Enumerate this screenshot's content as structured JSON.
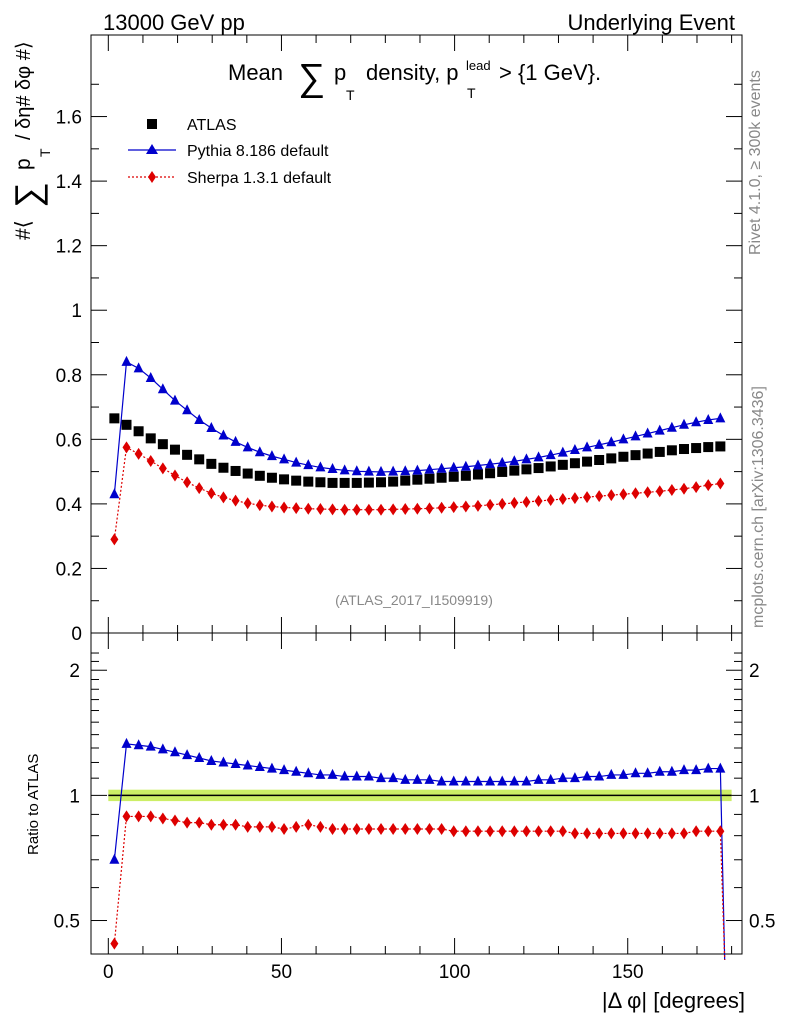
{
  "header": {
    "left": "13000 GeV pp",
    "right": "Underlying Event"
  },
  "side_labels": {
    "rivet": "Rivet 4.1.0, ≥ 300k events",
    "mcplots": "mcplots.cern.ch [arXiv:1306.3436]"
  },
  "chart_data": [
    {
      "type": "scatter",
      "panel": "main",
      "title": {
        "prefix": "Mean",
        "sum": "∑",
        "p": "p",
        "sub_T": "T",
        "middle": "density, p",
        "sup_lead": "lead",
        "suffix": "> {1 GeV}."
      },
      "ylabel": {
        "prefix": "#⟨",
        "sum": "∑",
        "p": "p",
        "sub_T": "T",
        "suffix": "/ δη# δφ #⟩"
      },
      "watermark": "(ATLAS_2017_I1509919)",
      "xlim": [
        -5,
        183
      ],
      "ylim": [
        0,
        1.8
      ],
      "y_ticks": [
        "0",
        "0.2",
        "0.4",
        "0.6",
        "0.8",
        "1",
        "1.2",
        "1.4",
        "1.6"
      ],
      "legend_position": "top-left",
      "x": [
        1.75,
        5.25,
        8.75,
        12.25,
        15.75,
        19.25,
        22.75,
        26.25,
        29.75,
        33.25,
        36.75,
        40.25,
        43.75,
        47.25,
        50.75,
        54.25,
        57.75,
        61.25,
        64.75,
        68.25,
        71.75,
        75.25,
        78.75,
        82.25,
        85.75,
        89.25,
        92.75,
        96.25,
        99.75,
        103.25,
        106.75,
        110.25,
        113.75,
        117.25,
        120.75,
        124.25,
        127.75,
        131.25,
        134.75,
        138.25,
        141.75,
        145.25,
        148.75,
        152.25,
        155.75,
        159.25,
        162.75,
        166.25,
        169.75,
        173.25,
        176.75
      ],
      "series": [
        {
          "name": "ATLAS",
          "marker": "square",
          "color": "#000000",
          "values": [
            0.665,
            0.645,
            0.625,
            0.603,
            0.585,
            0.568,
            0.552,
            0.538,
            0.524,
            0.512,
            0.502,
            0.494,
            0.487,
            0.481,
            0.476,
            0.472,
            0.469,
            0.467,
            0.465,
            0.465,
            0.465,
            0.466,
            0.467,
            0.469,
            0.472,
            0.475,
            0.478,
            0.481,
            0.484,
            0.487,
            0.491,
            0.495,
            0.499,
            0.503,
            0.507,
            0.511,
            0.516,
            0.521,
            0.526,
            0.531,
            0.536,
            0.541,
            0.546,
            0.551,
            0.556,
            0.561,
            0.566,
            0.57,
            0.573,
            0.576,
            0.578
          ]
        },
        {
          "name": "Pythia 8.186 default",
          "marker": "triangle",
          "color": "#0000cc",
          "values": [
            0.43,
            0.84,
            0.82,
            0.79,
            0.755,
            0.72,
            0.69,
            0.66,
            0.635,
            0.612,
            0.592,
            0.575,
            0.56,
            0.548,
            0.538,
            0.528,
            0.52,
            0.513,
            0.508,
            0.504,
            0.501,
            0.5,
            0.499,
            0.5,
            0.501,
            0.503,
            0.506,
            0.509,
            0.512,
            0.515,
            0.519,
            0.523,
            0.527,
            0.532,
            0.538,
            0.544,
            0.551,
            0.559,
            0.567,
            0.575,
            0.583,
            0.591,
            0.6,
            0.609,
            0.618,
            0.627,
            0.636,
            0.645,
            0.653,
            0.66,
            0.665
          ]
        },
        {
          "name": "Sherpa 1.3.1 default",
          "marker": "diamond",
          "color": "#dd0000",
          "values": [
            0.29,
            0.575,
            0.555,
            0.533,
            0.51,
            0.488,
            0.467,
            0.449,
            0.433,
            0.42,
            0.41,
            0.402,
            0.396,
            0.392,
            0.389,
            0.387,
            0.385,
            0.384,
            0.383,
            0.382,
            0.382,
            0.382,
            0.382,
            0.383,
            0.384,
            0.385,
            0.386,
            0.388,
            0.39,
            0.392,
            0.394,
            0.397,
            0.4,
            0.403,
            0.406,
            0.409,
            0.412,
            0.415,
            0.418,
            0.421,
            0.424,
            0.427,
            0.43,
            0.433,
            0.436,
            0.439,
            0.443,
            0.447,
            0.452,
            0.458,
            0.463
          ]
        }
      ]
    },
    {
      "type": "scatter",
      "panel": "ratio",
      "ylabel": "Ratio to ATLAS",
      "xlabel": "|Δ φ| [degrees]",
      "xlim": [
        -5,
        183
      ],
      "ylim": [
        0.42,
        2.3
      ],
      "y_ticks": [
        "0.5",
        "1",
        "2"
      ],
      "x_ticks": [
        "0",
        "50",
        "100",
        "150"
      ],
      "reference_band": [
        0.985,
        1.015
      ],
      "x": [
        1.75,
        5.25,
        8.75,
        12.25,
        15.75,
        19.25,
        22.75,
        26.25,
        29.75,
        33.25,
        36.75,
        40.25,
        43.75,
        47.25,
        50.75,
        54.25,
        57.75,
        61.25,
        64.75,
        68.25,
        71.75,
        75.25,
        78.75,
        82.25,
        85.75,
        89.25,
        92.75,
        96.25,
        99.75,
        103.25,
        106.75,
        110.25,
        113.75,
        117.25,
        120.75,
        124.25,
        127.75,
        131.25,
        134.75,
        138.25,
        141.75,
        145.25,
        148.75,
        152.25,
        155.75,
        159.25,
        162.75,
        166.25,
        169.75,
        173.25,
        176.75
      ],
      "series": [
        {
          "name": "Pythia 8.186 default",
          "marker": "triangle",
          "color": "#0000cc",
          "values": [
            0.7,
            1.33,
            1.32,
            1.31,
            1.29,
            1.27,
            1.25,
            1.23,
            1.21,
            1.2,
            1.19,
            1.18,
            1.17,
            1.16,
            1.15,
            1.14,
            1.13,
            1.12,
            1.12,
            1.11,
            1.11,
            1.11,
            1.1,
            1.1,
            1.09,
            1.09,
            1.09,
            1.08,
            1.08,
            1.08,
            1.08,
            1.08,
            1.08,
            1.08,
            1.08,
            1.09,
            1.09,
            1.1,
            1.1,
            1.11,
            1.11,
            1.12,
            1.12,
            1.13,
            1.13,
            1.14,
            1.14,
            1.15,
            1.15,
            1.16,
            1.16
          ]
        },
        {
          "name": "Sherpa 1.3.1 default",
          "marker": "diamond",
          "color": "#dd0000",
          "values": [
            0.44,
            0.89,
            0.89,
            0.89,
            0.88,
            0.87,
            0.86,
            0.86,
            0.85,
            0.85,
            0.85,
            0.84,
            0.84,
            0.84,
            0.83,
            0.84,
            0.85,
            0.84,
            0.83,
            0.83,
            0.83,
            0.83,
            0.83,
            0.83,
            0.83,
            0.83,
            0.83,
            0.83,
            0.82,
            0.82,
            0.82,
            0.82,
            0.82,
            0.82,
            0.82,
            0.82,
            0.82,
            0.82,
            0.81,
            0.81,
            0.81,
            0.81,
            0.81,
            0.81,
            0.81,
            0.81,
            0.81,
            0.81,
            0.82,
            0.82,
            0.82
          ]
        }
      ]
    }
  ]
}
